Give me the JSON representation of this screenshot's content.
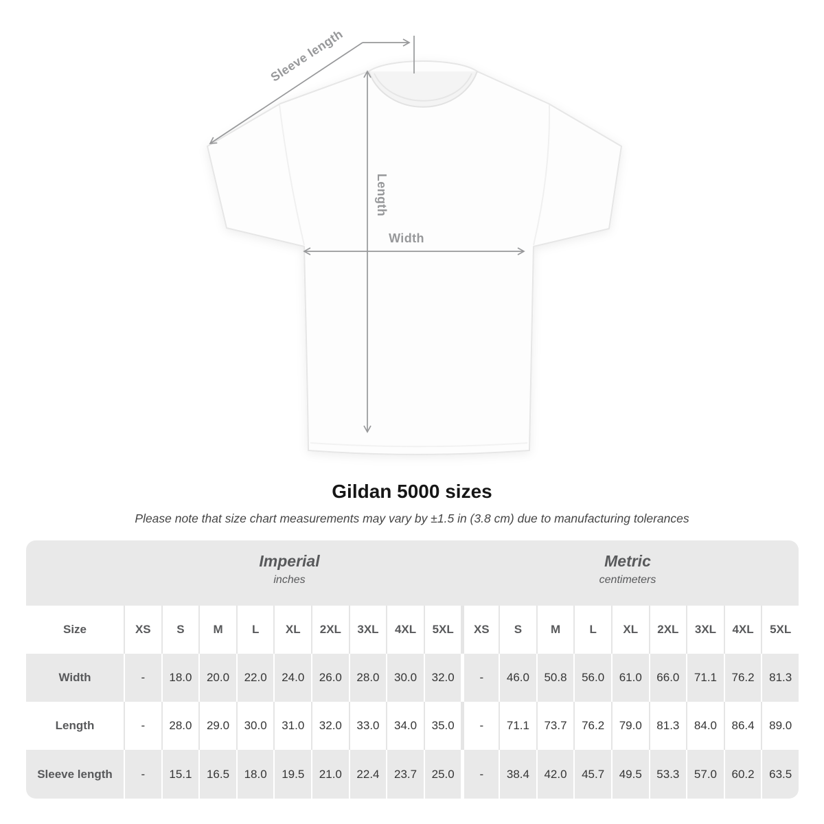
{
  "title": "Gildan 5000 sizes",
  "subtitle": "Please note that size chart measurements may vary by ±1.5 in (3.8 cm) due to manufacturing tolerances",
  "diagram": {
    "labels": {
      "sleeve_length": "Sleeve length",
      "length": "Length",
      "width": "Width"
    }
  },
  "table": {
    "size_col_header": "Size",
    "groups": [
      {
        "name": "Imperial",
        "unit": "inches"
      },
      {
        "name": "Metric",
        "unit": "centimeters"
      }
    ],
    "sizes": [
      "XS",
      "S",
      "M",
      "L",
      "XL",
      "2XL",
      "3XL",
      "4XL",
      "5XL"
    ],
    "rows": [
      {
        "label": "Width",
        "imperial": [
          "-",
          "18.0",
          "20.0",
          "22.0",
          "24.0",
          "26.0",
          "28.0",
          "30.0",
          "32.0"
        ],
        "metric": [
          "-",
          "46.0",
          "50.8",
          "56.0",
          "61.0",
          "66.0",
          "71.1",
          "76.2",
          "81.3"
        ]
      },
      {
        "label": "Length",
        "imperial": [
          "-",
          "28.0",
          "29.0",
          "30.0",
          "31.0",
          "32.0",
          "33.0",
          "34.0",
          "35.0"
        ],
        "metric": [
          "-",
          "71.1",
          "73.7",
          "76.2",
          "79.0",
          "81.3",
          "84.0",
          "86.4",
          "89.0"
        ]
      },
      {
        "label": "Sleeve length",
        "imperial": [
          "-",
          "15.1",
          "16.5",
          "18.0",
          "19.5",
          "21.0",
          "22.4",
          "23.7",
          "25.0"
        ],
        "metric": [
          "-",
          "38.4",
          "42.0",
          "45.7",
          "49.5",
          "53.3",
          "57.0",
          "60.2",
          "63.5"
        ]
      }
    ]
  },
  "chart_data": {
    "type": "table",
    "title": "Gildan 5000 sizes",
    "note": "Measurements may vary by ±1.5 in (3.8 cm) due to manufacturing tolerances",
    "column_groups": [
      "Imperial (inches)",
      "Metric (centimeters)"
    ],
    "categories": [
      "XS",
      "S",
      "M",
      "L",
      "XL",
      "2XL",
      "3XL",
      "4XL",
      "5XL"
    ],
    "series": [
      {
        "name": "Width (in)",
        "values": [
          null,
          18.0,
          20.0,
          22.0,
          24.0,
          26.0,
          28.0,
          30.0,
          32.0
        ]
      },
      {
        "name": "Length (in)",
        "values": [
          null,
          28.0,
          29.0,
          30.0,
          31.0,
          32.0,
          33.0,
          34.0,
          35.0
        ]
      },
      {
        "name": "Sleeve length (in)",
        "values": [
          null,
          15.1,
          16.5,
          18.0,
          19.5,
          21.0,
          22.4,
          23.7,
          25.0
        ]
      },
      {
        "name": "Width (cm)",
        "values": [
          null,
          46.0,
          50.8,
          56.0,
          61.0,
          66.0,
          71.1,
          76.2,
          81.3
        ]
      },
      {
        "name": "Length (cm)",
        "values": [
          null,
          71.1,
          73.7,
          76.2,
          79.0,
          81.3,
          84.0,
          86.4,
          89.0
        ]
      },
      {
        "name": "Sleeve length (cm)",
        "values": [
          null,
          38.4,
          42.0,
          45.7,
          49.5,
          53.3,
          57.0,
          60.2,
          63.5
        ]
      }
    ]
  },
  "colors": {
    "table_band": "#e9e9e9",
    "separator_on_white": "#e5e5e5",
    "annotation": "#97989a",
    "label_text": "#58595b",
    "value_text": "#353535",
    "title_text": "#161616"
  }
}
